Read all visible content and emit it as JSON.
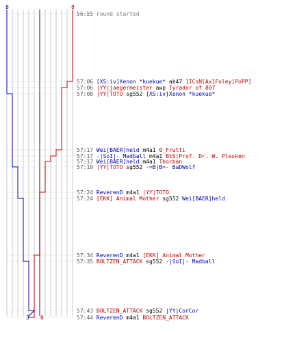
{
  "scores": {
    "blue_start": "8",
    "red_start": "8",
    "blue_end": "3",
    "red_end": "0"
  },
  "colors": {
    "blue": "#0000aa",
    "red": "#bb0000",
    "grid": "#c8c8c8",
    "center": "#666666"
  },
  "events": [
    {
      "time": "56:55",
      "parts": [
        {
          "c": "gray",
          "t": "round started"
        }
      ]
    },
    {
      "time": "57:06",
      "parts": [
        {
          "c": "blue",
          "t": "[XS:iv]Xenon *kuekue*"
        },
        {
          "c": "blk",
          "t": "ak47"
        },
        {
          "c": "red",
          "t": "]ICsN[Ax1Foley[PoPP]"
        }
      ]
    },
    {
      "time": "57:06",
      "parts": [
        {
          "c": "red",
          "t": "|YY|jaegermeister"
        },
        {
          "c": "blk",
          "t": "awp"
        },
        {
          "c": "red",
          "t": "Tyrador of 807"
        }
      ]
    },
    {
      "time": "57:08",
      "parts": [
        {
          "c": "red",
          "t": "|YY|TOTO"
        },
        {
          "c": "blk",
          "t": "sg552"
        },
        {
          "c": "blue",
          "t": "[XS:iv]Xenon *kuekue*"
        }
      ]
    },
    {
      "time": "57:17",
      "parts": [
        {
          "c": "blue",
          "t": "Wei[BAER]held"
        },
        {
          "c": "blk",
          "t": "m4a1"
        },
        {
          "c": "red",
          "t": "0_Frutti"
        }
      ]
    },
    {
      "time": "57:17",
      "parts": [
        {
          "c": "blue",
          "t": "-|SoI|- Madball"
        },
        {
          "c": "blk",
          "t": "m4a1"
        },
        {
          "c": "red",
          "t": "BtS|Prof. Dr. W. Plesken"
        }
      ]
    },
    {
      "time": "57:17",
      "parts": [
        {
          "c": "blue",
          "t": "Wei[BAER]held"
        },
        {
          "c": "blk",
          "t": "m4a1"
        },
        {
          "c": "red",
          "t": "Thorban"
        }
      ]
    },
    {
      "time": "57:19",
      "parts": [
        {
          "c": "red",
          "t": "|YY|TOTO"
        },
        {
          "c": "blk",
          "t": "sg552"
        },
        {
          "c": "blue",
          "t": "-=B|B=- BaDWolf"
        }
      ]
    },
    {
      "time": "57:24",
      "parts": [
        {
          "c": "blue",
          "t": "ReverenD"
        },
        {
          "c": "blk",
          "t": "m4a1"
        },
        {
          "c": "red",
          "t": "|YY|TOTO"
        }
      ]
    },
    {
      "time": "57:24",
      "parts": [
        {
          "c": "red",
          "t": "[EKK] Animal Mother"
        },
        {
          "c": "blk",
          "t": "sg552"
        },
        {
          "c": "blue",
          "t": "Wei[BAER]held"
        }
      ]
    },
    {
      "time": "57:34",
      "parts": [
        {
          "c": "blue",
          "t": "ReverenD"
        },
        {
          "c": "blk",
          "t": "m4a1"
        },
        {
          "c": "red",
          "t": "[EKK] Animal Mother"
        }
      ]
    },
    {
      "time": "57:35",
      "parts": [
        {
          "c": "red",
          "t": "BOLTZEN_ATTACK"
        },
        {
          "c": "blk",
          "t": "sg552"
        },
        {
          "c": "blue",
          "t": "-|SoI|- Madball"
        }
      ]
    },
    {
      "time": "57:43",
      "parts": [
        {
          "c": "red",
          "t": "BOLTZEN_ATTACK"
        },
        {
          "c": "blk",
          "t": "sg552"
        },
        {
          "c": "blue",
          "t": "|YY|CorCor"
        }
      ]
    },
    {
      "time": "57:44",
      "parts": [
        {
          "c": "blue",
          "t": "ReverenD"
        },
        {
          "c": "blk",
          "t": "m4a1"
        },
        {
          "c": "red",
          "t": "BOLTZEN_ATTACK"
        }
      ]
    }
  ]
}
